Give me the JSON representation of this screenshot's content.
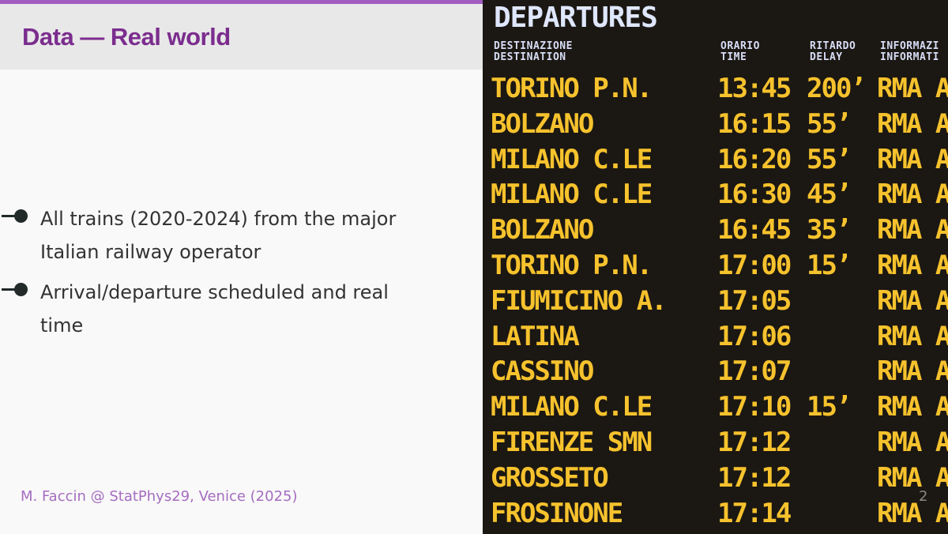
{
  "slide": {
    "title": "Data — Real world",
    "bullets": [
      {
        "text": "All trains (2020-2024) from the major Italian railway operator"
      },
      {
        "text": "Arrival/departure scheduled and real time"
      }
    ],
    "footer": "M. Faccin @ StatPhys29, Venice (2025)",
    "page_number": "2"
  },
  "board": {
    "title": "DEPARTURES",
    "headers": {
      "destination_it": "DESTINAZIONE",
      "destination_en": "DESTINATION",
      "time_it": "ORARIO",
      "time_en": "TIME",
      "delay_it": "RITARDO",
      "delay_en": "DELAY",
      "info_it": "INFORMAZI",
      "info_en": "INFORMATI"
    },
    "rows": [
      {
        "destination": "TORINO P.N.",
        "time": "13:45",
        "delay": "200’",
        "info": "RMA A"
      },
      {
        "destination": "BOLZANO",
        "time": "16:15",
        "delay": "55’",
        "info": "RMA A"
      },
      {
        "destination": "MILANO C.LE",
        "time": "16:20",
        "delay": "55’",
        "info": "RMA A"
      },
      {
        "destination": "MILANO C.LE",
        "time": "16:30",
        "delay": "45’",
        "info": "RMA A"
      },
      {
        "destination": "BOLZANO",
        "time": "16:45",
        "delay": "35’",
        "info": "RMA A"
      },
      {
        "destination": "TORINO P.N.",
        "time": "17:00",
        "delay": "15’",
        "info": "RMA A"
      },
      {
        "destination": "FIUMICINO A.",
        "time": "17:05",
        "delay": "",
        "info": "RMA A"
      },
      {
        "destination": "LATINA",
        "time": "17:06",
        "delay": "",
        "info": "RMA A"
      },
      {
        "destination": "CASSINO",
        "time": "17:07",
        "delay": "",
        "info": "RMA A"
      },
      {
        "destination": "MILANO C.LE",
        "time": "17:10",
        "delay": "15’",
        "info": "RMA A"
      },
      {
        "destination": "FIRENZE SMN",
        "time": "17:12",
        "delay": "",
        "info": "RMA A"
      },
      {
        "destination": "GROSSETO",
        "time": "17:12",
        "delay": "",
        "info": "RMA A"
      },
      {
        "destination": "FROSINONE",
        "time": "17:14",
        "delay": "",
        "info": "RMA A"
      }
    ]
  },
  "colors": {
    "accent": "#7b2d8e",
    "footer": "#a56dbf",
    "board_text": "#f6c22d",
    "board_header": "#d7ddf5"
  }
}
